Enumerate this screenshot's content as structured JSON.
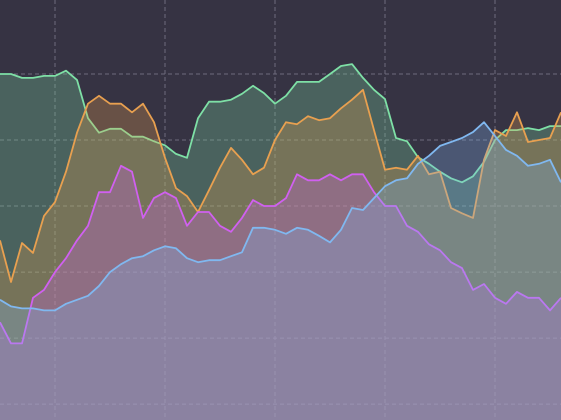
{
  "chart_data": {
    "type": "area",
    "x": [
      0,
      1,
      2,
      3,
      4,
      5,
      6,
      7,
      8,
      9,
      10,
      11,
      12,
      13,
      14,
      15,
      16,
      17,
      18,
      19,
      20,
      21,
      22,
      23,
      24,
      25,
      26,
      27,
      28,
      29,
      30,
      31,
      32,
      33,
      34,
      35,
      36,
      37,
      38,
      39,
      40,
      41,
      42,
      43,
      44,
      45,
      46,
      47,
      48,
      49,
      50,
      51
    ],
    "xlim": [
      0,
      51
    ],
    "xticks": [
      5,
      15,
      25,
      35,
      45
    ],
    "ylim": [
      -0.24,
      6.12
    ],
    "yticks": [
      0,
      1,
      2,
      3,
      4,
      5
    ],
    "grid": true,
    "series": [
      {
        "color": "#7ee0a6",
        "values": [
          5.0,
          5.0,
          4.94,
          4.94,
          4.97,
          4.97,
          5.05,
          4.91,
          4.33,
          4.11,
          4.17,
          4.17,
          4.05,
          4.05,
          3.98,
          3.92,
          3.79,
          3.73,
          4.33,
          4.58,
          4.58,
          4.61,
          4.7,
          4.82,
          4.71,
          4.55,
          4.67,
          4.88,
          4.88,
          4.88,
          5.0,
          5.12,
          5.15,
          4.94,
          4.76,
          4.62,
          4.03,
          3.98,
          3.74,
          3.64,
          3.52,
          3.42,
          3.36,
          3.45,
          3.67,
          4.0,
          4.15,
          4.15,
          4.18,
          4.15,
          4.21,
          4.21
        ]
      },
      {
        "color": "#e8a050",
        "values": [
          2.48,
          1.85,
          2.44,
          2.29,
          2.85,
          3.06,
          3.52,
          4.11,
          4.55,
          4.67,
          4.55,
          4.55,
          4.42,
          4.55,
          4.27,
          3.73,
          3.27,
          3.15,
          2.91,
          3.24,
          3.58,
          3.88,
          3.7,
          3.48,
          3.58,
          4.0,
          4.27,
          4.24,
          4.36,
          4.3,
          4.33,
          4.48,
          4.61,
          4.76,
          4.15,
          3.55,
          3.58,
          3.55,
          3.76,
          3.48,
          3.52,
          2.97,
          2.89,
          2.82,
          3.7,
          4.15,
          4.06,
          4.42,
          3.97,
          4.0,
          4.03,
          4.42
        ]
      },
      {
        "color": "#d060f0",
        "values": [
          1.24,
          0.92,
          0.92,
          1.61,
          1.73,
          2.0,
          2.21,
          2.48,
          2.7,
          3.21,
          3.21,
          3.61,
          3.52,
          2.82,
          3.12,
          3.21,
          3.12,
          2.7,
          2.91,
          2.91,
          2.7,
          2.61,
          2.82,
          3.09,
          3.0,
          3.0,
          3.12,
          3.48,
          3.39,
          3.39,
          3.48,
          3.39,
          3.48,
          3.48,
          3.21,
          3.0,
          3.0,
          2.7,
          2.61,
          2.42,
          2.33,
          2.15,
          2.06,
          1.73,
          1.82,
          1.61,
          1.52,
          1.7,
          1.61,
          1.61,
          1.42,
          1.61
        ]
      },
      {
        "color": "#80b8f0",
        "values": [
          1.58,
          1.48,
          1.45,
          1.45,
          1.42,
          1.42,
          1.52,
          1.58,
          1.64,
          1.79,
          2.0,
          2.12,
          2.21,
          2.24,
          2.33,
          2.39,
          2.36,
          2.21,
          2.15,
          2.18,
          2.18,
          2.24,
          2.3,
          2.67,
          2.67,
          2.64,
          2.58,
          2.67,
          2.64,
          2.55,
          2.45,
          2.64,
          2.97,
          2.94,
          3.12,
          3.3,
          3.39,
          3.42,
          3.64,
          3.76,
          3.91,
          3.97,
          4.03,
          4.12,
          4.27,
          4.06,
          3.85,
          3.76,
          3.61,
          3.64,
          3.7,
          3.36
        ]
      }
    ]
  }
}
